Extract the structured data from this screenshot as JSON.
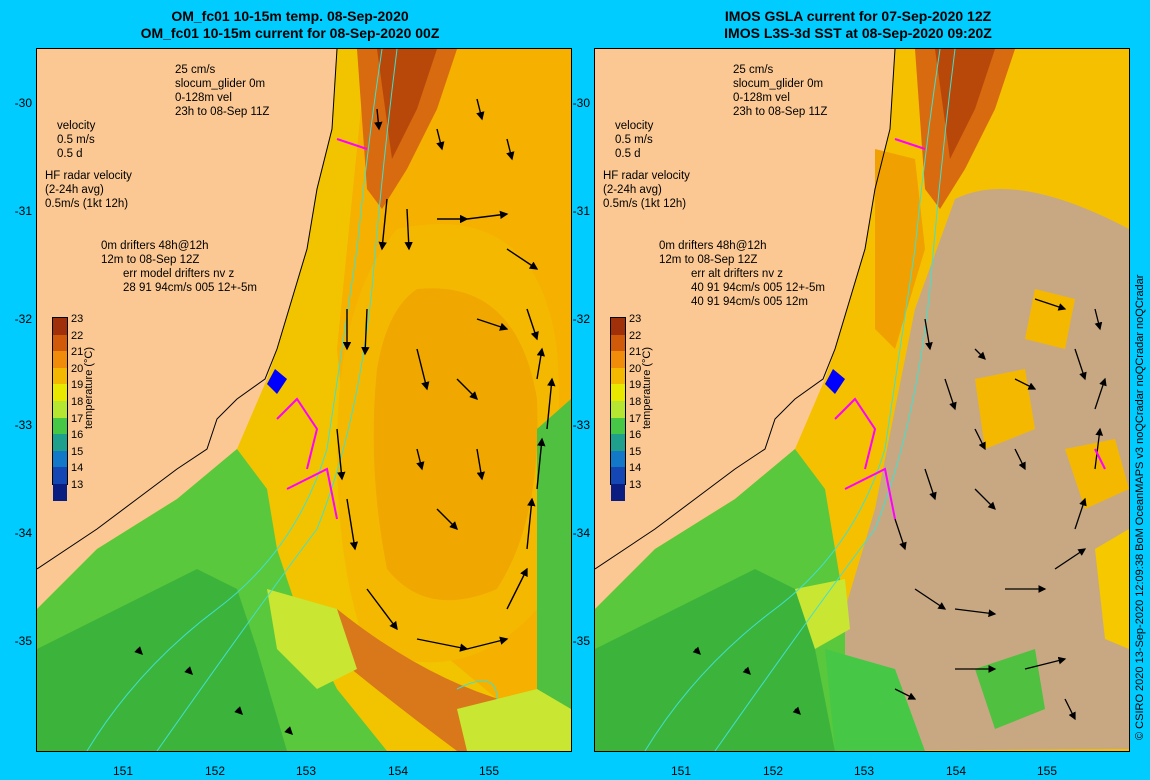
{
  "left_panel": {
    "title_line1": "OM_fc01 10-15m temp. 08-Sep-2020",
    "title_line2": "OM_fc01 10-15m current for 08-Sep-2020 00Z",
    "legend": {
      "speed_ref": "25 cm/s",
      "glider": "slocum_glider 0m",
      "glider_vel": "0-128m vel",
      "glider_time": "23h to 08-Sep 11Z",
      "velocity": "velocity",
      "velocity_scale1": "0.5 m/s",
      "velocity_scale2": "0.5 d",
      "hf_radar": "HF radar velocity",
      "hf_avg": "(2-24h avg)",
      "hf_scale": "0.5m/s (1kt 12h)",
      "drifters_line1": "0m   drifters 48h@12h",
      "drifters_line2": "12m  to 08-Sep 12Z",
      "err_line1": "err model drifters nv z",
      "err_line2": "28 91 94cm/s 005 12+-5m",
      "err_line3": ""
    }
  },
  "right_panel": {
    "title_line1": "IMOS GSLA current for 07-Sep-2020 12Z",
    "title_line2": "IMOS L3S-3d SST at 08-Sep-2020 09:20Z",
    "legend": {
      "speed_ref": "25 cm/s",
      "glider": "slocum_glider 0m",
      "glider_vel": "0-128m vel",
      "glider_time": "23h to 08-Sep 11Z",
      "velocity": "velocity",
      "velocity_scale1": "0.5 m/s",
      "velocity_scale2": "0.5 d",
      "hf_radar": "HF radar velocity",
      "hf_avg": "(2-24h avg)",
      "hf_scale": "0.5m/s (1kt 12h)",
      "drifters_line1": "0m   drifters 48h@12h",
      "drifters_line2": "12m  to 08-Sep 12Z",
      "err_line1": "err alt drifters nv z",
      "err_line2": "40 91 94cm/s 005 12+-5m",
      "err_line3": "40 91 94cm/s 005 12m"
    }
  },
  "colorbar": {
    "title": "temperature (°C)",
    "labels": [
      "23",
      "22",
      "21",
      "20",
      "19",
      "18",
      "17",
      "16",
      "15",
      "14",
      "13"
    ],
    "colors": [
      "#a0300a",
      "#d05a0a",
      "#f08c0a",
      "#f5b800",
      "#e8e800",
      "#b4e632",
      "#46c846",
      "#1ea08c",
      "#1478c8",
      "#1446b4",
      "#0a1e82"
    ]
  },
  "axes": {
    "y_ticks": [
      "-30",
      "-31",
      "-32",
      "-33",
      "-34",
      "-35"
    ],
    "x_ticks": [
      "151",
      "152",
      "153",
      "154",
      "155"
    ]
  },
  "credit": "© CSIRO 2020   13-Sep-2020 12:09:38 BoM OceanMAPS v3 noQCradar noQCradar noQCradar",
  "colors": {
    "background": "#00ccff",
    "land": "#fbc893",
    "no_data": "#c8a882",
    "arrow": "#000000",
    "drifter": "#ff00ff",
    "glider": "#0000ff",
    "contour": "#40e0d0"
  }
}
